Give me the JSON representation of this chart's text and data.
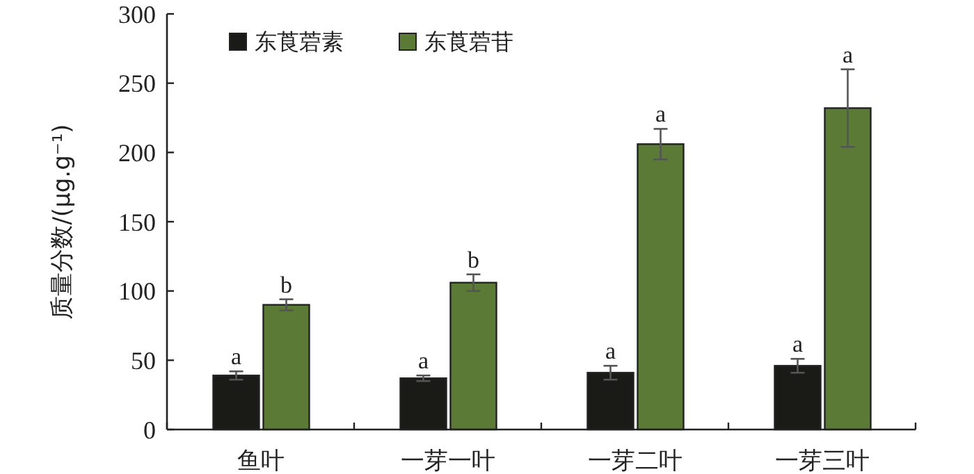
{
  "chart_data": {
    "type": "bar",
    "ylabel": "质量分数/(μg.g⁻¹)",
    "categories": [
      "鱼叶",
      "一芽一叶",
      "一芽二叶",
      "一芽三叶"
    ],
    "ylim": [
      0,
      300
    ],
    "yticks": [
      0,
      50,
      100,
      150,
      200,
      250,
      300
    ],
    "legend": "top left",
    "grid": false,
    "series": [
      {
        "name": "东莨菪素",
        "color": "#1a1a17",
        "values": [
          39,
          37,
          41,
          46
        ],
        "errors": [
          3,
          2,
          5,
          5
        ],
        "value_labels": [
          "a",
          "a",
          "a",
          "a"
        ]
      },
      {
        "name": "东莨菪苷",
        "color": "#5a7a35",
        "values": [
          90,
          106,
          206,
          232
        ],
        "errors": [
          4,
          6,
          11,
          28
        ],
        "value_labels": [
          "b",
          "b",
          "a",
          "a"
        ]
      }
    ]
  }
}
